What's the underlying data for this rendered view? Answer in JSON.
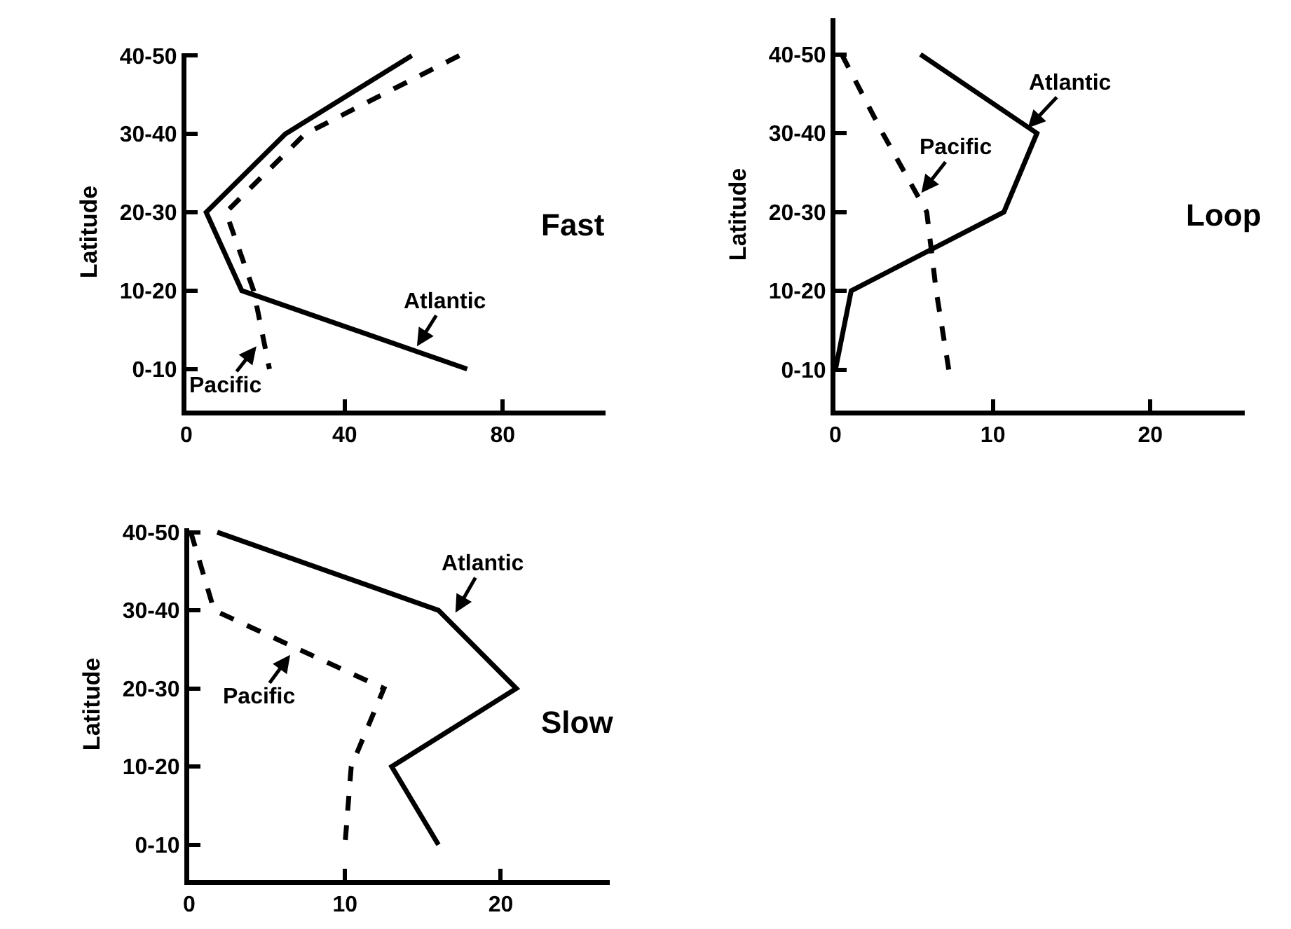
{
  "chart_data": [
    {
      "type": "line",
      "orientation": "horizontal",
      "title": "Fast",
      "ylabel": "Latitude",
      "categories": [
        "40-50",
        "30-40",
        "20-30",
        "10-20",
        "0-10"
      ],
      "xlim": [
        0,
        106
      ],
      "xticks": [
        0,
        40,
        80
      ],
      "grid": false,
      "marker": "none",
      "series": [
        {
          "color": "#000000",
          "line_style": "solid",
          "values": [
            57,
            25,
            5,
            14,
            71
          ]
        },
        {
          "color": "#000000",
          "line_style": "dashed",
          "values": [
            69,
            30,
            10,
            17,
            21
          ]
        }
      ],
      "annotations": [
        "Atlantic",
        "Pacific"
      ]
    },
    {
      "type": "line",
      "orientation": "horizontal",
      "title": "Loop",
      "ylabel": "Latitude",
      "categories": [
        "40-50",
        "30-40",
        "20-30",
        "10-20",
        "0-10"
      ],
      "xlim": [
        0,
        26
      ],
      "xticks": [
        0,
        10,
        20
      ],
      "grid": false,
      "marker": "none",
      "series": [
        {
          "color": "#000000",
          "line_style": "solid",
          "values": [
            5.4,
            12.8,
            10.7,
            1,
            0
          ]
        },
        {
          "color": "#000000",
          "line_style": "dashed",
          "values": [
            0.4,
            3,
            5.8,
            6.4,
            7.2
          ]
        }
      ],
      "annotations": [
        "Atlantic",
        "Pacific"
      ]
    },
    {
      "type": "line",
      "orientation": "horizontal",
      "title": "Slow",
      "ylabel": "Latitude",
      "categories": [
        "40-50",
        "30-40",
        "20-30",
        "10-20",
        "0-10"
      ],
      "xlim": [
        0,
        27
      ],
      "xticks": [
        0,
        10,
        20
      ],
      "grid": false,
      "marker": "none",
      "series": [
        {
          "color": "#000000",
          "line_style": "solid",
          "values": [
            1.8,
            16,
            21,
            13,
            16
          ]
        },
        {
          "color": "#000000",
          "line_style": "dashed",
          "values": [
            0.1,
            1.6,
            12.5,
            10.4,
            10
          ]
        }
      ],
      "annotations": [
        "Atlantic",
        "Pacific"
      ]
    }
  ]
}
